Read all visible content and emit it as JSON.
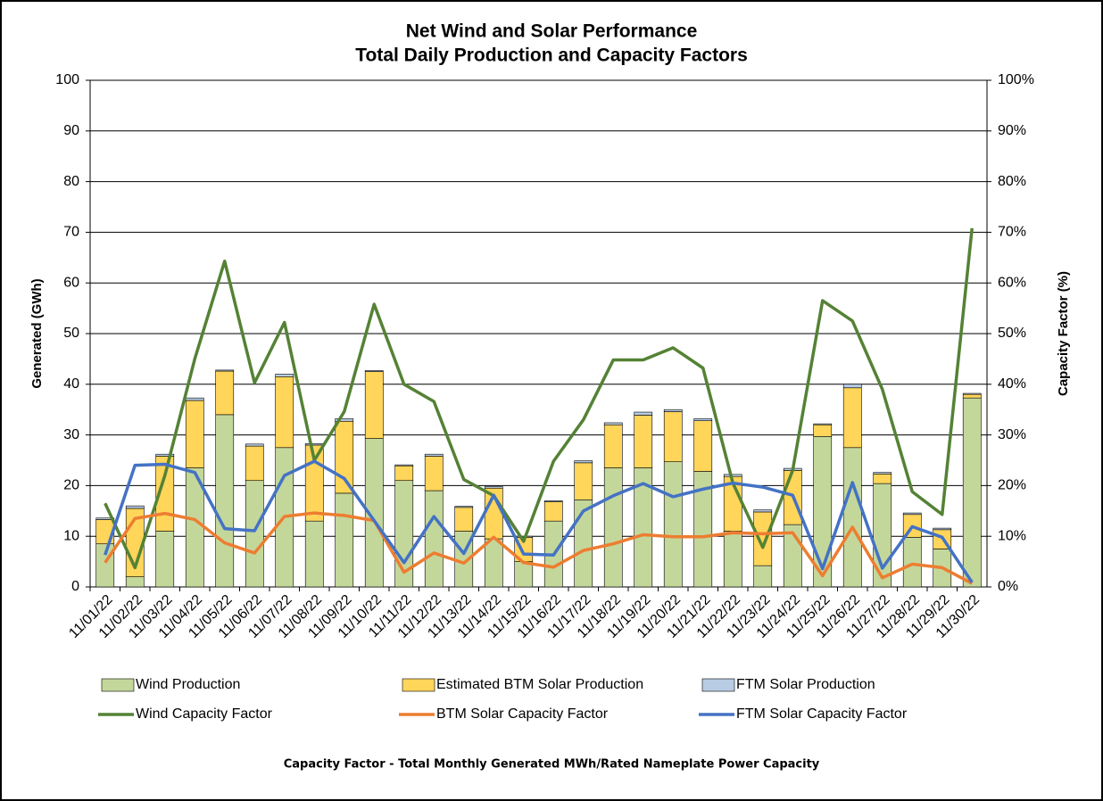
{
  "chart_data": {
    "type": "bar",
    "title": "Net Wind and Solar Performance",
    "subtitle": "Total Daily Production and Capacity Factors",
    "y_label": "Generated (GWh)",
    "y2_label": "Capacity Factor (%)",
    "footnote": "Capacity Factor  - Total Monthly Generated MWh/Rated Nameplate Power Capacity",
    "categories": [
      "11/01/22",
      "11/02/22",
      "11/03/22",
      "11/04/22",
      "11/05/22",
      "11/06/22",
      "11/07/22",
      "11/08/22",
      "11/09/22",
      "11/10/22",
      "11/11/22",
      "11/12/22",
      "11/13/22",
      "11/14/22",
      "11/15/22",
      "11/16/22",
      "11/17/22",
      "11/18/22",
      "11/19/22",
      "11/20/22",
      "11/21/22",
      "11/22/22",
      "11/23/22",
      "11/24/22",
      "11/25/22",
      "11/26/22",
      "11/27/22",
      "11/28/22",
      "11/29/22",
      "11/30/22"
    ],
    "ylim": [
      0,
      100
    ],
    "yticks": [
      0,
      10,
      20,
      30,
      40,
      50,
      60,
      70,
      80,
      90,
      100
    ],
    "y2lim": [
      0,
      100
    ],
    "y2ticks": [
      {
        "value": 0,
        "label": "0%"
      },
      {
        "value": 10,
        "label": "10%"
      },
      {
        "value": 20,
        "label": "20%"
      },
      {
        "value": 30,
        "label": "30%"
      },
      {
        "value": 40,
        "label": "40%"
      },
      {
        "value": 50,
        "label": "50%"
      },
      {
        "value": 60,
        "label": "60%"
      },
      {
        "value": 70,
        "label": "70%"
      },
      {
        "value": 80,
        "label": "80%"
      },
      {
        "value": 90,
        "label": "90%"
      },
      {
        "value": 100,
        "label": "100%"
      }
    ],
    "grid": true,
    "stacked": true,
    "series": [
      {
        "name": "Wind Production",
        "type": "bar",
        "color": "#c4d79b",
        "values": [
          8.5,
          2,
          11,
          23.5,
          34,
          21,
          27.5,
          13,
          18.5,
          29.3,
          21,
          19,
          11,
          9.5,
          5,
          13,
          17.2,
          23.5,
          23.5,
          24.7,
          22.8,
          11,
          4.2,
          12.3,
          29.7,
          27.5,
          20.4,
          9.8,
          7.5,
          37.3
        ]
      },
      {
        "name": "Estimated BTM Solar Production",
        "type": "bar",
        "color": "#ffd55a",
        "values": [
          4.8,
          13.5,
          14.8,
          13.3,
          8.6,
          6.8,
          14,
          15,
          14.2,
          13.2,
          2.9,
          6.8,
          4.7,
          10,
          4.8,
          3.8,
          7.3,
          8.5,
          10.4,
          9.9,
          10,
          10.8,
          10.6,
          10.7,
          2.3,
          11.8,
          1.9,
          4.5,
          3.8,
          0.7
        ]
      },
      {
        "name": "FTM Solar Production",
        "type": "bar",
        "color": "#b8cce4",
        "values": [
          0.3,
          0.5,
          0.4,
          0.5,
          0.2,
          0.4,
          0.5,
          0.3,
          0.5,
          0.2,
          0.2,
          0.4,
          0.2,
          0.3,
          0.2,
          0.2,
          0.4,
          0.4,
          0.6,
          0.4,
          0.4,
          0.4,
          0.4,
          0.4,
          0.2,
          0.7,
          0.3,
          0.3,
          0.3,
          0.2
        ]
      },
      {
        "name": "Wind Capacity Factor",
        "type": "line",
        "axis": "y2",
        "color": "#548235",
        "values": [
          16.5,
          3.8,
          22,
          45,
          64.3,
          40.3,
          52.2,
          25,
          34.6,
          55.8,
          40,
          36.6,
          21.2,
          18,
          9,
          24.8,
          33,
          44.8,
          44.8,
          47.2,
          43.2,
          20.5,
          7.8,
          23,
          56.5,
          52.5,
          39,
          18.8,
          14.3,
          70.8
        ]
      },
      {
        "name": "BTM Solar Capacity Factor",
        "type": "line",
        "axis": "y2",
        "color": "#ed7d31",
        "values": [
          4.8,
          13.5,
          14.5,
          13.3,
          8.7,
          6.7,
          13.9,
          14.6,
          14.1,
          13.1,
          2.9,
          6.7,
          4.7,
          9.8,
          4.8,
          3.9,
          7.2,
          8.5,
          10.3,
          9.9,
          9.9,
          10.7,
          10.5,
          10.7,
          2.2,
          11.8,
          1.8,
          4.5,
          3.8,
          0.7
        ]
      },
      {
        "name": "FTM Solar Capacity Factor",
        "type": "line",
        "axis": "y2",
        "color": "#4472c4",
        "values": [
          6.3,
          24,
          24.2,
          22.6,
          11.5,
          11.1,
          22,
          24.8,
          21.4,
          13.1,
          4.8,
          13.9,
          6.6,
          18.1,
          6.5,
          6.3,
          15,
          18,
          20.4,
          17.8,
          19.3,
          20.5,
          19.7,
          18.1,
          3.6,
          20.6,
          3.7,
          11.9,
          9.8,
          0.9
        ]
      }
    ]
  }
}
